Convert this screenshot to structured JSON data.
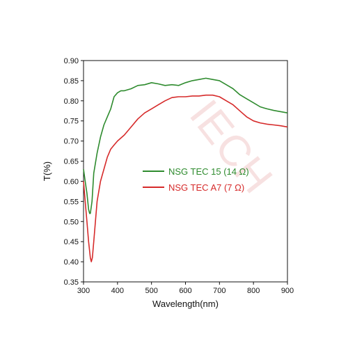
{
  "watermark": "IECH",
  "chart_data": {
    "type": "line",
    "xlabel": "Wavelength(nm)",
    "ylabel": "T(%)",
    "xlim": [
      300,
      900
    ],
    "ylim": [
      0.35,
      0.9
    ],
    "xticks": [
      300,
      400,
      500,
      600,
      700,
      800,
      900
    ],
    "yticks": [
      0.35,
      0.4,
      0.45,
      0.5,
      0.55,
      0.6,
      0.65,
      0.7,
      0.75,
      0.8,
      0.85,
      0.9
    ],
    "x_tick_labels": [
      "300",
      "400",
      "500",
      "600",
      "700",
      "800",
      "900"
    ],
    "y_tick_labels": [
      "0.35",
      "0.40",
      "0.45",
      "0.50",
      "0.55",
      "0.60",
      "0.65",
      "0.70",
      "0.75",
      "0.80",
      "0.85",
      "0.90"
    ],
    "grid": false,
    "legend": "center-right",
    "series": [
      {
        "name": "NSG TEC 15 (14 Ω)",
        "color": "#2e8b2e",
        "x": [
          300,
          305,
          310,
          315,
          318,
          320,
          325,
          330,
          340,
          350,
          360,
          370,
          380,
          390,
          400,
          410,
          420,
          440,
          460,
          480,
          500,
          520,
          540,
          560,
          580,
          600,
          620,
          640,
          660,
          680,
          700,
          720,
          740,
          760,
          780,
          800,
          820,
          840,
          860,
          880,
          900
        ],
        "y": [
          0.63,
          0.6,
          0.57,
          0.53,
          0.52,
          0.52,
          0.55,
          0.62,
          0.67,
          0.71,
          0.74,
          0.76,
          0.78,
          0.81,
          0.82,
          0.825,
          0.825,
          0.83,
          0.838,
          0.84,
          0.845,
          0.842,
          0.838,
          0.84,
          0.838,
          0.845,
          0.85,
          0.853,
          0.856,
          0.853,
          0.85,
          0.84,
          0.83,
          0.815,
          0.805,
          0.795,
          0.785,
          0.78,
          0.776,
          0.773,
          0.77
        ]
      },
      {
        "name": "NSG TEC A7 (7 Ω)",
        "color": "#d62a2a",
        "x": [
          300,
          305,
          310,
          315,
          320,
          323,
          326,
          330,
          340,
          350,
          360,
          370,
          380,
          390,
          400,
          420,
          440,
          460,
          480,
          500,
          520,
          540,
          560,
          580,
          600,
          620,
          640,
          660,
          680,
          700,
          720,
          740,
          760,
          780,
          800,
          820,
          840,
          860,
          880,
          900
        ],
        "y": [
          0.6,
          0.55,
          0.5,
          0.45,
          0.41,
          0.4,
          0.41,
          0.45,
          0.55,
          0.6,
          0.63,
          0.66,
          0.68,
          0.69,
          0.7,
          0.715,
          0.735,
          0.755,
          0.77,
          0.78,
          0.79,
          0.8,
          0.808,
          0.81,
          0.81,
          0.812,
          0.812,
          0.814,
          0.814,
          0.81,
          0.8,
          0.79,
          0.775,
          0.76,
          0.75,
          0.745,
          0.742,
          0.74,
          0.738,
          0.735
        ]
      }
    ]
  }
}
